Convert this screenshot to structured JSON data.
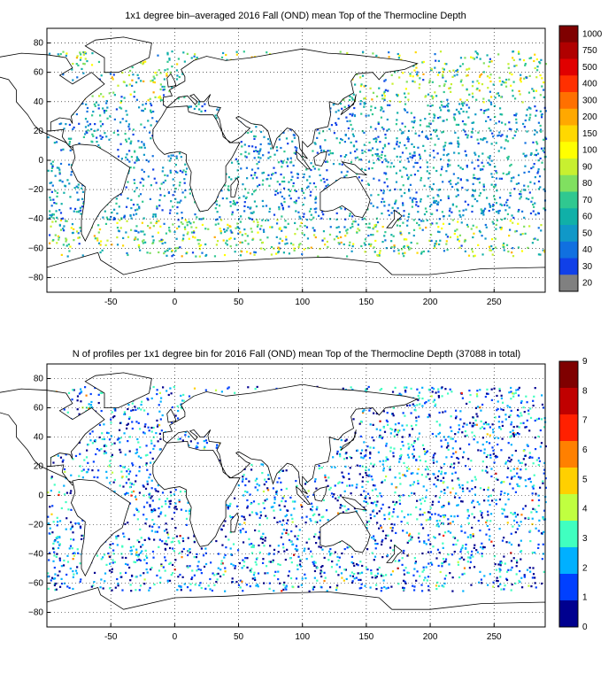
{
  "map1": {
    "title": "1x1 degree bin–averaged 2016 Fall (OND) mean Top of the Thermocline Depth",
    "x_ticks": [
      "-50",
      "0",
      "50",
      "100",
      "150",
      "200",
      "250"
    ],
    "y_ticks": [
      "80",
      "60",
      "40",
      "20",
      "0",
      "−20",
      "−40",
      "−60",
      "−80"
    ],
    "colorbar_labels": [
      "1000",
      "750",
      "500",
      "400",
      "300",
      "200",
      "150",
      "100",
      "90",
      "80",
      "70",
      "60",
      "50",
      "40",
      "30",
      "20"
    ],
    "colorbar_colors": [
      "#7f0000",
      "#b00000",
      "#e00000",
      "#ff3000",
      "#ff7000",
      "#ffa800",
      "#ffd800",
      "#ffff00",
      "#c8f030",
      "#80e060",
      "#30c890",
      "#10b0a8",
      "#1098c8",
      "#1070e0",
      "#1040e8",
      "#808080"
    ]
  },
  "map2": {
    "title": "N of profiles per 1x1 degree bin for 2016 Fall (OND) mean Top of the Thermocline Depth  (37088 in total)",
    "x_ticks": [
      "-50",
      "0",
      "50",
      "100",
      "150",
      "200",
      "250"
    ],
    "y_ticks": [
      "80",
      "60",
      "40",
      "20",
      "0",
      "−20",
      "−40",
      "−60",
      "−80"
    ],
    "colorbar_labels": [
      "9",
      "8",
      "7",
      "6",
      "5",
      "4",
      "3",
      "2",
      "1",
      "0"
    ],
    "colorbar_colors": [
      "#7f0000",
      "#c00000",
      "#ff2000",
      "#ff8000",
      "#ffd000",
      "#c0ff40",
      "#40ffc0",
      "#00b0ff",
      "#0040ff",
      "#00008f"
    ]
  },
  "axes": {
    "lon_range": [
      -100,
      290
    ],
    "lat_range": [
      -90,
      90
    ]
  }
}
